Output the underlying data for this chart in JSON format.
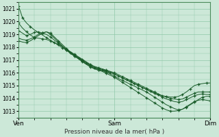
{
  "title": "",
  "xlabel": "Pression niveau de la mer( hPa )",
  "bg_color": "#cce8d8",
  "grid_color": "#8fc8a8",
  "line_color": "#1a5c2a",
  "xlim": [
    0,
    48
  ],
  "ylim": [
    1012.5,
    1021.5
  ],
  "yticks": [
    1013,
    1014,
    1015,
    1016,
    1017,
    1018,
    1019,
    1020,
    1021
  ],
  "xticks": [
    0,
    24,
    48
  ],
  "xticklabels": [
    "Ven",
    "Sam",
    "Dim"
  ],
  "lines": [
    {
      "x": [
        0,
        0.5,
        1,
        2,
        3,
        4,
        5,
        6,
        7,
        8,
        9,
        10,
        11,
        12,
        13,
        14,
        15,
        16,
        17,
        18,
        19,
        20,
        21,
        22,
        23,
        24,
        25,
        26,
        27,
        28,
        29,
        30,
        31,
        32,
        33,
        34,
        35,
        36,
        37,
        38,
        39,
        40,
        41,
        42,
        43,
        44,
        45,
        46,
        47,
        48
      ],
      "y": [
        1021.2,
        1020.8,
        1020.3,
        1019.9,
        1019.6,
        1019.35,
        1019.15,
        1018.95,
        1018.75,
        1018.55,
        1018.35,
        1018.15,
        1017.95,
        1017.75,
        1017.55,
        1017.35,
        1017.15,
        1016.95,
        1016.75,
        1016.55,
        1016.4,
        1016.3,
        1016.2,
        1016.1,
        1016.0,
        1015.9,
        1015.75,
        1015.6,
        1015.45,
        1015.3,
        1015.15,
        1015.0,
        1014.85,
        1014.7,
        1014.55,
        1014.4,
        1014.3,
        1014.2,
        1014.15,
        1014.1,
        1014.1,
        1014.15,
        1014.3,
        1014.5,
        1014.75,
        1015.0,
        1015.1,
        1015.15,
        1015.2,
        1015.2
      ]
    },
    {
      "x": [
        0,
        1,
        2,
        3,
        4,
        5,
        6,
        7,
        8,
        9,
        10,
        11,
        12,
        13,
        14,
        15,
        16,
        17,
        18,
        19,
        20,
        21,
        22,
        23,
        24,
        25,
        26,
        27,
        28,
        29,
        30,
        31,
        32,
        33,
        34,
        35,
        36,
        37,
        38,
        39,
        40,
        41,
        42,
        43,
        44,
        45,
        46,
        47,
        48
      ],
      "y": [
        1019.9,
        1019.5,
        1019.2,
        1018.95,
        1018.75,
        1018.7,
        1018.65,
        1018.6,
        1018.5,
        1018.35,
        1018.2,
        1018.05,
        1017.85,
        1017.65,
        1017.45,
        1017.25,
        1017.05,
        1016.85,
        1016.65,
        1016.5,
        1016.4,
        1016.3,
        1016.2,
        1016.1,
        1016.0,
        1015.85,
        1015.7,
        1015.55,
        1015.4,
        1015.25,
        1015.1,
        1014.95,
        1014.8,
        1014.65,
        1014.5,
        1014.35,
        1014.2,
        1014.1,
        1014.0,
        1013.95,
        1013.9,
        1013.95,
        1014.1,
        1014.25,
        1014.4,
        1014.5,
        1014.5,
        1014.5,
        1014.5
      ]
    },
    {
      "x": [
        0,
        1,
        2,
        3,
        4,
        5,
        6,
        7,
        8,
        9,
        10,
        11,
        12,
        13,
        14,
        15,
        16,
        17,
        18,
        19,
        20,
        21,
        22,
        23,
        24,
        25,
        26,
        27,
        28,
        29,
        30,
        31,
        32,
        33,
        34,
        35,
        36,
        37,
        38,
        39,
        40,
        41,
        42,
        43,
        44,
        45,
        46,
        47,
        48
      ],
      "y": [
        1019.3,
        1019.1,
        1018.9,
        1019.0,
        1019.15,
        1019.2,
        1019.1,
        1019.0,
        1018.8,
        1018.55,
        1018.3,
        1018.05,
        1017.8,
        1017.6,
        1017.4,
        1017.2,
        1017.0,
        1016.8,
        1016.6,
        1016.45,
        1016.35,
        1016.25,
        1016.15,
        1016.05,
        1015.9,
        1015.75,
        1015.6,
        1015.45,
        1015.3,
        1015.15,
        1015.0,
        1014.85,
        1014.7,
        1014.55,
        1014.4,
        1014.25,
        1014.1,
        1013.95,
        1013.85,
        1013.75,
        1013.7,
        1013.75,
        1013.9,
        1014.05,
        1014.2,
        1014.3,
        1014.35,
        1014.3,
        1014.3
      ]
    },
    {
      "x": [
        0,
        1,
        2,
        3,
        4,
        5,
        6,
        7,
        8,
        9,
        10,
        11,
        12,
        13,
        14,
        15,
        16,
        17,
        18,
        19,
        20,
        21,
        22,
        23,
        24,
        25,
        26,
        27,
        28,
        29,
        30,
        31,
        32,
        33,
        34,
        35,
        36,
        37,
        38,
        39,
        40,
        41,
        42,
        43,
        44,
        45,
        46,
        47,
        48
      ],
      "y": [
        1018.7,
        1018.6,
        1018.55,
        1018.65,
        1018.8,
        1019.0,
        1019.1,
        1019.2,
        1019.0,
        1018.7,
        1018.4,
        1018.1,
        1017.8,
        1017.5,
        1017.3,
        1017.1,
        1016.9,
        1016.7,
        1016.5,
        1016.35,
        1016.25,
        1016.15,
        1016.05,
        1015.9,
        1015.75,
        1015.55,
        1015.4,
        1015.25,
        1015.1,
        1014.95,
        1014.8,
        1014.65,
        1014.5,
        1014.3,
        1014.1,
        1013.9,
        1013.7,
        1013.5,
        1013.35,
        1013.2,
        1013.1,
        1013.15,
        1013.3,
        1013.5,
        1013.7,
        1013.9,
        1014.1,
        1014.15,
        1014.15
      ]
    },
    {
      "x": [
        0,
        1,
        2,
        3,
        4,
        5,
        6,
        7,
        8,
        9,
        10,
        11,
        12,
        13,
        14,
        15,
        16,
        17,
        18,
        19,
        20,
        21,
        22,
        23,
        24,
        25,
        26,
        27,
        28,
        29,
        30,
        31,
        32,
        33,
        34,
        35,
        36,
        37,
        38,
        39,
        40,
        41,
        42,
        43,
        44,
        45,
        46,
        47,
        48
      ],
      "y": [
        1018.5,
        1018.4,
        1018.35,
        1018.5,
        1018.7,
        1018.9,
        1019.1,
        1019.2,
        1019.1,
        1018.8,
        1018.5,
        1018.2,
        1017.9,
        1017.6,
        1017.3,
        1017.1,
        1016.85,
        1016.65,
        1016.45,
        1016.3,
        1016.2,
        1016.1,
        1015.95,
        1015.8,
        1015.65,
        1015.45,
        1015.25,
        1015.05,
        1014.85,
        1014.65,
        1014.45,
        1014.25,
        1014.05,
        1013.85,
        1013.65,
        1013.45,
        1013.25,
        1013.1,
        1013.0,
        1013.0,
        1013.05,
        1013.15,
        1013.35,
        1013.55,
        1013.75,
        1013.85,
        1013.9,
        1013.85,
        1013.8
      ]
    }
  ]
}
